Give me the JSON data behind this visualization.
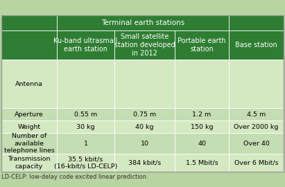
{
  "title": "Terminal earth stations",
  "header_bg": "#2e7d32",
  "header_text_color": "#ffffff",
  "row_bg_light": "#d4e8c2",
  "row_bg_med": "#c5ddb2",
  "outer_bg": "#b8d4a0",
  "footer_text": "LD-CELP: low-delay code excited linear prediction",
  "col_headers": [
    "Ku-band ultrasmall\nearth station",
    "Small satellite\nstation developed\nin 2012",
    "Portable earth\nstation",
    "Base station"
  ],
  "row_labels": [
    "Antenna",
    "Aperture",
    "Weight",
    "Number of\navailable\ntelephone lines",
    "Transmission\ncapacity"
  ],
  "data": [
    [
      "",
      "",
      "",
      ""
    ],
    [
      "0.55 m",
      "0.75 m",
      "1.2 m",
      "4.5 m"
    ],
    [
      "30 kg",
      "40 kg",
      "150 kg",
      "Over 2000 kg"
    ],
    [
      "1",
      "10",
      "40",
      "Over 40"
    ],
    [
      "35.5 kbit/s\n(16-kbit/s LD-CELP)",
      "384 kbit/s",
      "1.5 Mbit/s",
      "Over 6 Mbit/s"
    ]
  ],
  "font_size_title": 7.5,
  "font_size_col_header": 7.0,
  "font_size_data": 6.8,
  "font_size_label": 6.8,
  "font_size_footer": 6.0
}
